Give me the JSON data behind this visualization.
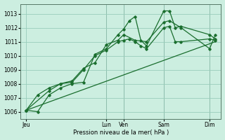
{
  "background_color": "#cceee0",
  "grid_color": "#99ccbb",
  "line_color": "#1a6e2e",
  "xlabel": "Pression niveau de la mer( hPa )",
  "ylim": [
    1005.5,
    1013.7
  ],
  "yticks": [
    1006,
    1007,
    1008,
    1009,
    1010,
    1011,
    1012,
    1013
  ],
  "xtick_labels": [
    "Jeu",
    "Lun",
    "Ven",
    "Sam",
    "Dim"
  ],
  "xtick_positions": [
    0,
    14,
    17,
    24,
    32
  ],
  "xlim": [
    -1,
    34
  ],
  "vlines": [
    14,
    17,
    24,
    32
  ],
  "series1_x": [
    0,
    2,
    4,
    6,
    8,
    10,
    12,
    14,
    16,
    17,
    18,
    19,
    20,
    21,
    24,
    25,
    26,
    27,
    32,
    33
  ],
  "series1_y": [
    1006.1,
    1006.0,
    1007.2,
    1007.7,
    1008.0,
    1008.1,
    1010.1,
    1010.5,
    1011.5,
    1011.9,
    1012.5,
    1012.8,
    1011.1,
    1010.7,
    1013.2,
    1013.2,
    1012.0,
    1012.1,
    1011.5,
    1011.2
  ],
  "series2_x": [
    0,
    2,
    4,
    6,
    8,
    10,
    12,
    14,
    16,
    17,
    18,
    19,
    20,
    21,
    24,
    25,
    26,
    27,
    32,
    33
  ],
  "series2_y": [
    1006.1,
    1007.2,
    1007.7,
    1008.0,
    1008.1,
    1009.0,
    1010.0,
    1010.4,
    1011.0,
    1011.1,
    1011.2,
    1011.0,
    1010.7,
    1010.5,
    1012.0,
    1012.1,
    1011.0,
    1011.0,
    1011.2,
    1011.1
  ],
  "series3_x": [
    0,
    4,
    6,
    8,
    10,
    12,
    14,
    16,
    17,
    19,
    21,
    24,
    25,
    27,
    32,
    33
  ],
  "series3_y": [
    1006.1,
    1007.5,
    1008.0,
    1008.2,
    1009.1,
    1009.5,
    1010.8,
    1011.1,
    1011.5,
    1011.1,
    1011.0,
    1012.4,
    1012.5,
    1012.0,
    1010.5,
    1011.5
  ],
  "series4_x": [
    0,
    33
  ],
  "series4_y": [
    1006.1,
    1011.0
  ]
}
